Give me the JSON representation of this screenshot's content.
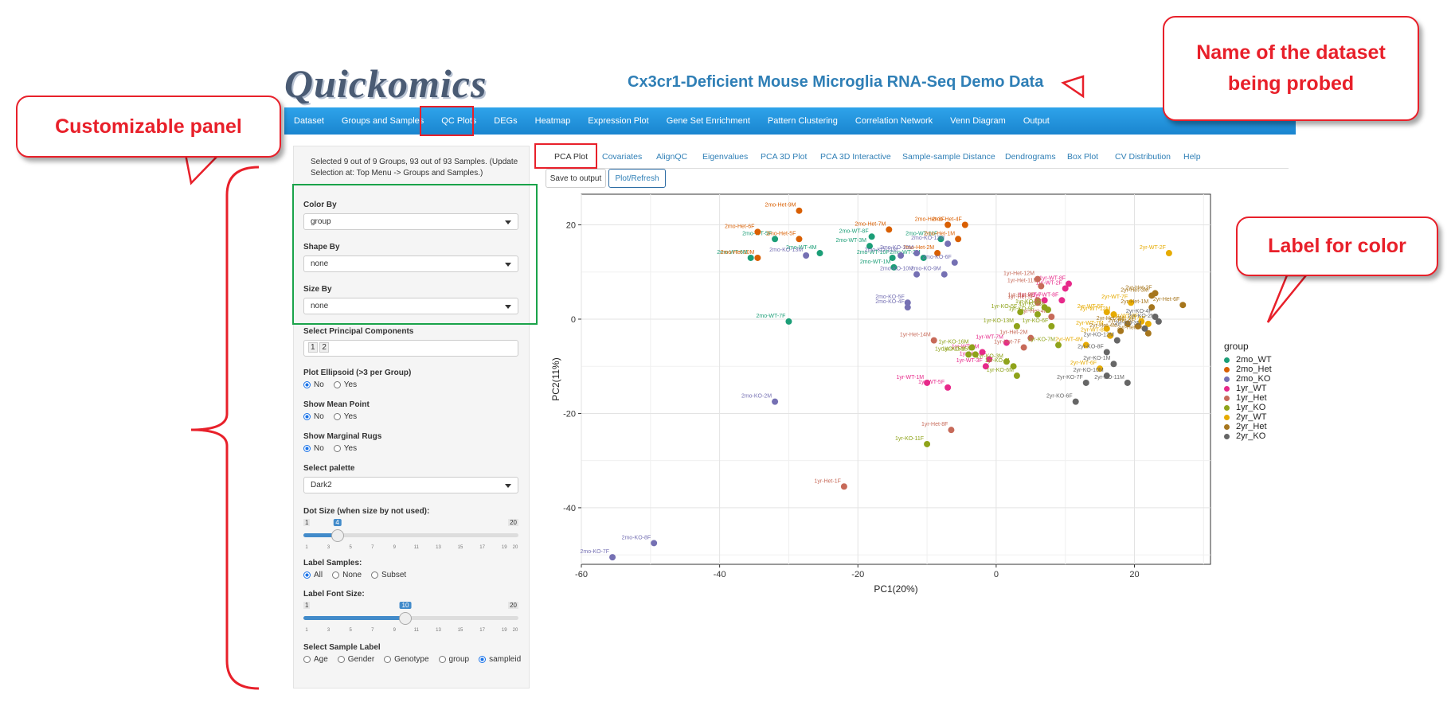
{
  "app": {
    "logo": "Quickomics",
    "title": "Cx3cr1-Deficient Mouse Microglia RNA-Seq Demo Data"
  },
  "navbar": {
    "items": [
      "Dataset",
      "Groups and Samples",
      "QC Plots",
      "DEGs",
      "Heatmap",
      "Expression Plot",
      "Gene Set Enrichment",
      "Pattern Clustering",
      "Correlation Network",
      "Venn Diagram",
      "Output"
    ],
    "active": "QC Plots"
  },
  "callouts": {
    "customizable": "Customizable panel",
    "dataset_line1": "Name of the dataset",
    "dataset_line2": "being probed",
    "color_label": "Label for color"
  },
  "sidebar": {
    "note": "Selected 9 out of 9 Groups, 93 out of 93 Samples. (Update Selection at: Top Menu -> Groups and Samples.)",
    "color_by": {
      "label": "Color By",
      "value": "group"
    },
    "shape_by": {
      "label": "Shape By",
      "value": "none"
    },
    "size_by": {
      "label": "Size By",
      "value": "none"
    },
    "pcs": {
      "label": "Select Principal Components",
      "values": [
        "1",
        "2"
      ]
    },
    "ellipsoid": {
      "label": "Plot Ellipsoid (>3 per Group)",
      "options": [
        "No",
        "Yes"
      ],
      "selected": "No"
    },
    "mean_point": {
      "label": "Show Mean Point",
      "options": [
        "No",
        "Yes"
      ],
      "selected": "No"
    },
    "rugs": {
      "label": "Show Marginal Rugs",
      "options": [
        "No",
        "Yes"
      ],
      "selected": "No"
    },
    "palette": {
      "label": "Select palette",
      "value": "Dark2"
    },
    "dot_size": {
      "label": "Dot Size (when size by not used):",
      "min": "1",
      "max": "20",
      "value": "4",
      "fraction": 0.158
    },
    "label_samples": {
      "label": "Label Samples:",
      "options": [
        "All",
        "None",
        "Subset"
      ],
      "selected": "All"
    },
    "label_font": {
      "label": "Label Font Size:",
      "min": "1",
      "max": "20",
      "value": "10",
      "fraction": 0.474
    },
    "sample_label": {
      "label": "Select Sample Label",
      "options": [
        "Age",
        "Gender",
        "Genotype",
        "group",
        "sampleid"
      ],
      "selected": "sampleid"
    },
    "ticks": [
      "1",
      "3",
      "5",
      "7",
      "9",
      "11",
      "13",
      "15",
      "17",
      "19",
      "20"
    ]
  },
  "tabs": {
    "items": [
      "PCA Plot",
      "Covariates",
      "AlignQC",
      "Eigenvalues",
      "PCA 3D Plot",
      "PCA 3D Interactive",
      "Sample-sample Distance",
      "Dendrograms",
      "Box Plot",
      "CV Distribution",
      "Help"
    ],
    "active": "PCA Plot"
  },
  "buttons": {
    "save": "Save to output",
    "refresh": "Plot/Refresh"
  },
  "chart_data": {
    "type": "scatter",
    "xlabel": "PC1(20%)",
    "ylabel": "PC2(11%)",
    "xlim": [
      -60,
      31
    ],
    "ylim": [
      -52,
      26.5
    ],
    "xticks": [
      "-60",
      "-40",
      "-20",
      "0",
      "20"
    ],
    "yticks": [
      "-40",
      "-20",
      "0",
      "20"
    ],
    "legend": {
      "title": "group",
      "placement": "right"
    },
    "series": [
      {
        "name": "2mo_WT",
        "color": "#1b9e77",
        "points": [
          {
            "x": -32,
            "y": 17,
            "label": "2mo-WT-5F"
          },
          {
            "x": -35.5,
            "y": 13,
            "label": "2mo-WT-6M"
          },
          {
            "x": -25.5,
            "y": 14,
            "label": "2mo-WT-4M"
          },
          {
            "x": -18,
            "y": 17.5,
            "label": "2mo-WT-8F"
          },
          {
            "x": -18.3,
            "y": 15.5,
            "label": "2mo-WT-3M"
          },
          {
            "x": -15,
            "y": 13,
            "label": "2mo-WT-10F"
          },
          {
            "x": -14.8,
            "y": 11,
            "label": "2mo-WT-1M"
          },
          {
            "x": -10.5,
            "y": 13,
            "label": "2mo-WT-2M"
          },
          {
            "x": -8,
            "y": 17,
            "label": "2mo-WT-11F"
          },
          {
            "x": -30,
            "y": -0.5,
            "label": "2mo-WT-7F"
          }
        ]
      },
      {
        "name": "2mo_Het",
        "color": "#d95f02",
        "points": [
          {
            "x": -28.5,
            "y": 23,
            "label": "2mo-Het-9M"
          },
          {
            "x": -34.5,
            "y": 18.5,
            "label": "2mo-Het-6F"
          },
          {
            "x": -28.5,
            "y": 17,
            "label": "2mo-Het-5F"
          },
          {
            "x": -34.5,
            "y": 13,
            "label": "2mo-Het-10M"
          },
          {
            "x": -15.5,
            "y": 19,
            "label": "2mo-Het-7M"
          },
          {
            "x": -7,
            "y": 20,
            "label": "2mo-Het-3F"
          },
          {
            "x": -4.5,
            "y": 20,
            "label": "2mo-Het-4F"
          },
          {
            "x": -5.5,
            "y": 17,
            "label": "2mo-Het-1M"
          },
          {
            "x": -8.5,
            "y": 14,
            "label": "2mo-Het-2M"
          }
        ]
      },
      {
        "name": "2mo_KO",
        "color": "#7570b3",
        "points": [
          {
            "x": -27.5,
            "y": 13.5,
            "label": "2mo-KO-13M"
          },
          {
            "x": -13.8,
            "y": 13.5,
            "label": "2mo-KO-11M"
          },
          {
            "x": -11.5,
            "y": 14,
            "label": "2mo-KO-10M"
          },
          {
            "x": -7,
            "y": 16,
            "label": "2mo-KO-12M"
          },
          {
            "x": -6,
            "y": 12,
            "label": "2mo-KO-6F"
          },
          {
            "x": -11.5,
            "y": 9.5,
            "label": "2mo-KO-10M"
          },
          {
            "x": -7.5,
            "y": 9.5,
            "label": "2mo-KO-9M"
          },
          {
            "x": -12.8,
            "y": 3.5,
            "label": "2mo-KO-5F"
          },
          {
            "x": -12.8,
            "y": 2.5,
            "label": "2mo-KO-4F"
          },
          {
            "x": -32,
            "y": -17.5,
            "label": "2mo-KO-2M"
          },
          {
            "x": -49.5,
            "y": -47.5,
            "label": "2mo-KO-8F"
          },
          {
            "x": -55.5,
            "y": -50.5,
            "label": "2mo-KO-7F"
          }
        ]
      },
      {
        "name": "1yr_WT",
        "color": "#e7298a",
        "points": [
          {
            "x": 10.5,
            "y": 7.5,
            "label": "1yr-WT-8F"
          },
          {
            "x": 10,
            "y": 6.5,
            "label": "1yr-WT-2F"
          },
          {
            "x": 7,
            "y": 4,
            "label": "1yr-WT-7"
          },
          {
            "x": 9.5,
            "y": 4,
            "label": "1yr-WT-8F"
          },
          {
            "x": 1.5,
            "y": -5,
            "label": "1yr-WT-7M"
          },
          {
            "x": -2,
            "y": -7,
            "label": "1yr-WT-9M"
          },
          {
            "x": -1.5,
            "y": -10,
            "label": "1yr-WT-3F"
          },
          {
            "x": -10,
            "y": -13.5,
            "label": "1yr-WT-1M"
          },
          {
            "x": -7,
            "y": -14.5,
            "label": "1yr-WT-5F"
          },
          {
            "x": -1,
            "y": -8.5,
            "label": "1yr-Het-9F"
          }
        ]
      },
      {
        "name": "1yr_Het",
        "color": "#c76a59",
        "points": [
          {
            "x": 6,
            "y": 8.5,
            "label": "1yr-Het-12M"
          },
          {
            "x": 6.5,
            "y": 7,
            "label": "1yr-Het-11M"
          },
          {
            "x": 6,
            "y": 4,
            "label": "1yr-Het-8F"
          },
          {
            "x": 6,
            "y": 3.5,
            "label": "1yr-Het-5F"
          },
          {
            "x": 8,
            "y": 0.5,
            "label": "1yr-Het-4M"
          },
          {
            "x": 5,
            "y": -4,
            "label": "1yr-Het-2M"
          },
          {
            "x": -9,
            "y": -4.5,
            "label": "1yr-Het-14M"
          },
          {
            "x": 4,
            "y": -6,
            "label": "1yr-Het-7F"
          },
          {
            "x": -6.5,
            "y": -23.5,
            "label": "1yr-Het-8F"
          },
          {
            "x": -22,
            "y": -35.5,
            "label": "1yr-Het-1F"
          }
        ]
      },
      {
        "name": "1yr_KO",
        "color": "#8fa31a",
        "points": [
          {
            "x": 7,
            "y": 2.5,
            "label": "1yr-KO-3F"
          },
          {
            "x": 7.5,
            "y": 2,
            "label": "1yr-KO-3F"
          },
          {
            "x": 3.5,
            "y": 1.5,
            "label": "1yr-KO-5F"
          },
          {
            "x": 6,
            "y": 1,
            "label": "1yr-KO-9F"
          },
          {
            "x": 3,
            "y": -1.5,
            "label": "1yr-KO-13M"
          },
          {
            "x": 8,
            "y": -1.5,
            "label": "1yr-KO-6F"
          },
          {
            "x": -3.5,
            "y": -6,
            "label": "1yr-KO-16M"
          },
          {
            "x": -3,
            "y": -7.5,
            "label": "1yr-KO-15M"
          },
          {
            "x": -4,
            "y": -7.5,
            "label": "1yr-KO-15M"
          },
          {
            "x": 1.5,
            "y": -9,
            "label": "1yr-KO-3M"
          },
          {
            "x": 2.5,
            "y": -10,
            "label": "1yr-KO-11"
          },
          {
            "x": 9,
            "y": -5.5,
            "label": "1yr-KO-7M"
          },
          {
            "x": 3,
            "y": -12,
            "label": "1yr-KO-6M"
          },
          {
            "x": -10,
            "y": -26.5,
            "label": "1yr-KO-11F"
          }
        ]
      },
      {
        "name": "2yr_WT",
        "color": "#e6ab02",
        "points": [
          {
            "x": 25,
            "y": 14,
            "label": "2yr-WT-2F"
          },
          {
            "x": 16,
            "y": 1.5,
            "label": "2yr-WT-5F"
          },
          {
            "x": 19.5,
            "y": 3.5,
            "label": "2yr-WT-7F"
          },
          {
            "x": 17,
            "y": 1,
            "label": "2yr-WT-12M"
          },
          {
            "x": 16,
            "y": -2,
            "label": "2yr-WT-7M"
          },
          {
            "x": 16.5,
            "y": -3.5,
            "label": "2yr-WT-8F"
          },
          {
            "x": 13,
            "y": -5.5,
            "label": "2yr-WT-4M"
          },
          {
            "x": 15,
            "y": -10.5,
            "label": "2yr-WT-6F"
          },
          {
            "x": 21,
            "y": -0.5,
            "label": "2yr-WT-9F"
          },
          {
            "x": 22,
            "y": -1,
            "label": "2yr-WT-6F"
          }
        ]
      },
      {
        "name": "2yr_Het",
        "color": "#a6761d",
        "points": [
          {
            "x": 22.5,
            "y": 5,
            "label": "2yr-Het-3M"
          },
          {
            "x": 23,
            "y": 5.5,
            "label": "2yr-Het-2F"
          },
          {
            "x": 27,
            "y": 3,
            "label": "2yr-Het-6F"
          },
          {
            "x": 22.5,
            "y": 2.5,
            "label": "2yr-Het-1M"
          },
          {
            "x": 19,
            "y": -1,
            "label": "2yr-Het-9M"
          },
          {
            "x": 20.5,
            "y": -1.5,
            "label": "2yr-Het-6F"
          },
          {
            "x": 22,
            "y": -3,
            "label": "2yr-Het-5M"
          },
          {
            "x": 18,
            "y": -2.5,
            "label": "2yr-Het-4M"
          }
        ]
      },
      {
        "name": "2yr_KO",
        "color": "#666666",
        "points": [
          {
            "x": 23.5,
            "y": -0.5,
            "label": "2yr-KO-2M"
          },
          {
            "x": 23,
            "y": 0.5,
            "label": "2yr-KO-4F"
          },
          {
            "x": 21.5,
            "y": -2,
            "label": "2yr-KO-3M"
          },
          {
            "x": 17.5,
            "y": -4.5,
            "label": "2yr-KO-12M"
          },
          {
            "x": 16,
            "y": -7,
            "label": "2yr-KO-8F"
          },
          {
            "x": 17,
            "y": -9.5,
            "label": "2yr-KO-1M"
          },
          {
            "x": 16,
            "y": -12,
            "label": "2yr-KO-10M"
          },
          {
            "x": 13,
            "y": -13.5,
            "label": "2yr-KO-7F"
          },
          {
            "x": 19,
            "y": -13.5,
            "label": "2yr-KO-11M"
          },
          {
            "x": 11.5,
            "y": -17.5,
            "label": "2yr-KO-6F"
          }
        ]
      }
    ]
  }
}
